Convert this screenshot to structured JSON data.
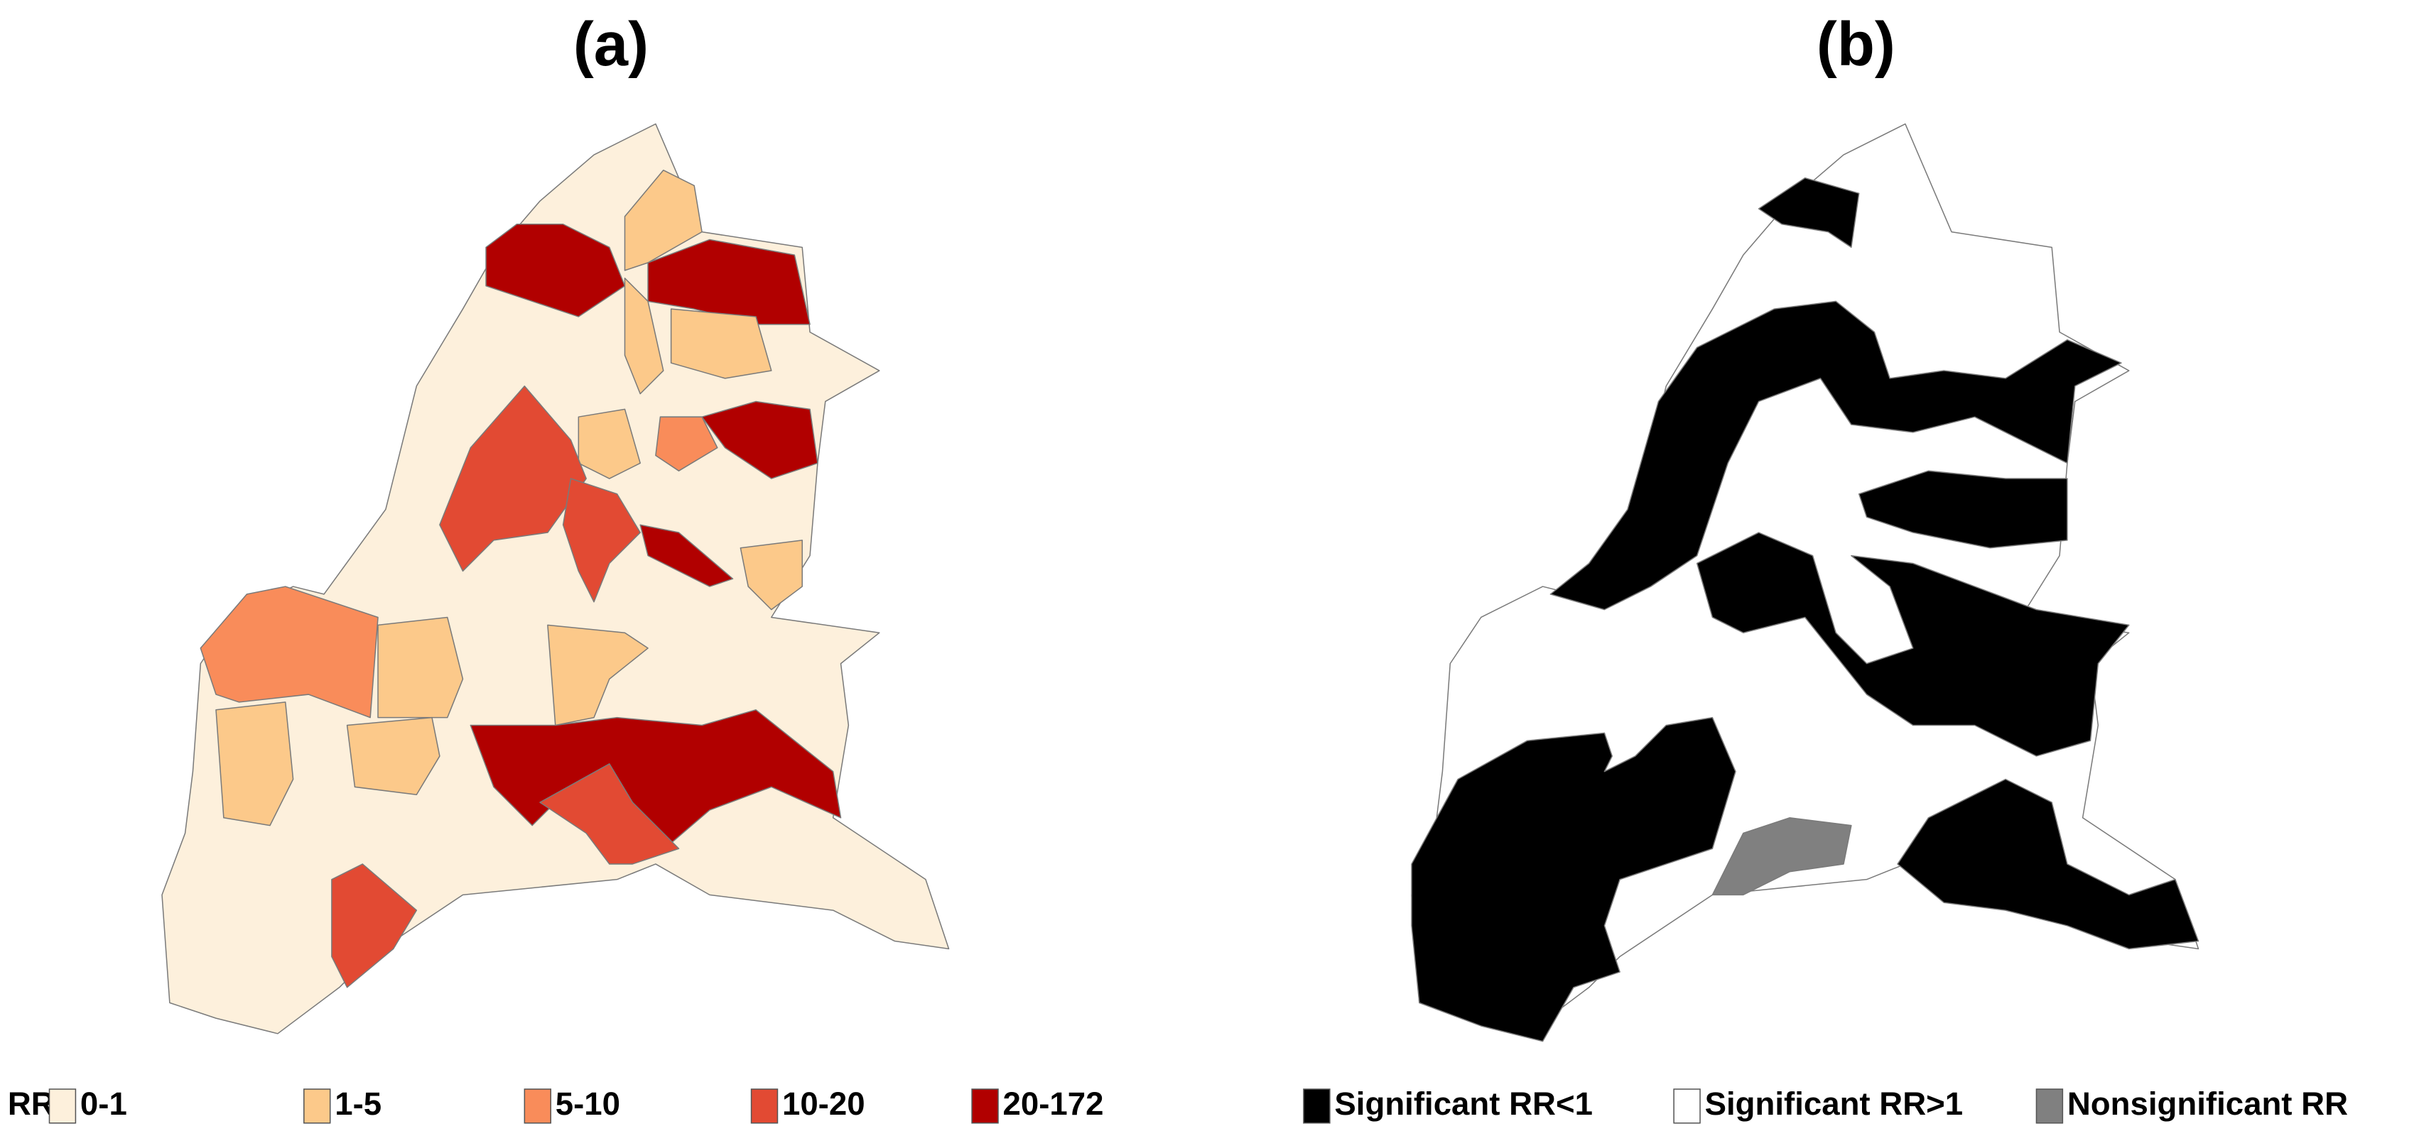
{
  "panels": [
    {
      "title": "(a)",
      "legend": {
        "title": "RR",
        "items": [
          {
            "label": "0-1",
            "color": "#fdf0dc"
          },
          {
            "label": "1-5",
            "color": "#fcc98a"
          },
          {
            "label": "5-10",
            "color": "#f98c5a"
          },
          {
            "label": "10-20",
            "color": "#e24a33"
          },
          {
            "label": "20-172",
            "color": "#b10000"
          }
        ]
      }
    },
    {
      "title": "(b)",
      "legend": {
        "items": [
          {
            "label": "Significant RR<1",
            "color": "#000000"
          },
          {
            "label": "Significant RR>1",
            "color": "#ffffff"
          },
          {
            "label": "Nonsignificant RR",
            "color": "#808080"
          }
        ]
      }
    }
  ]
}
